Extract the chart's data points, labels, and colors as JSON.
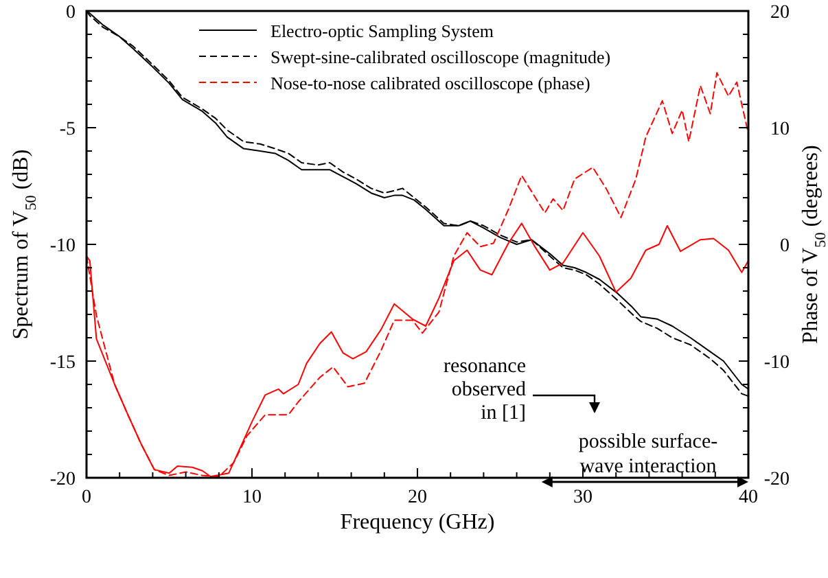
{
  "chart_data": {
    "type": "line",
    "xlabel": "Frequency (GHz)",
    "ylabel": "Spectrum of V$_{50}$ (dB)",
    "y2label": "Phase of V$_{50}$ (degrees)",
    "xlim": [
      0,
      40
    ],
    "ylim": [
      -20,
      0
    ],
    "y2lim": [
      -20,
      20
    ],
    "xticks": [
      0,
      {
        "value": 2,
        "label": null
      },
      {
        "value": 4,
        "label": null
      },
      {
        "value": 6,
        "label": null
      },
      {
        "value": 8,
        "label": null
      },
      10,
      {
        "value": 12,
        "label": null
      },
      {
        "value": 14,
        "label": null
      },
      {
        "value": 16,
        "label": null
      },
      {
        "value": 18,
        "label": null
      },
      20,
      {
        "value": 22,
        "label": null
      },
      {
        "value": 24,
        "label": null
      },
      {
        "value": 26,
        "label": null
      },
      {
        "value": 28,
        "label": null
      },
      30,
      {
        "value": 32,
        "label": null
      },
      {
        "value": 34,
        "label": null
      },
      {
        "value": 36,
        "label": null
      },
      {
        "value": 38,
        "label": null
      },
      40
    ],
    "yticks": [
      -20,
      {
        "value": -19,
        "label": null
      },
      {
        "value": -18,
        "label": null
      },
      {
        "value": -17,
        "label": null
      },
      {
        "value": -16,
        "label": null
      },
      -15,
      {
        "value": -14,
        "label": null
      },
      {
        "value": -13,
        "label": null
      },
      {
        "value": -12,
        "label": null
      },
      {
        "value": -11,
        "label": null
      },
      -10,
      {
        "value": -9,
        "label": null
      },
      {
        "value": -8,
        "label": null
      },
      {
        "value": -7,
        "label": null
      },
      {
        "value": -6,
        "label": null
      },
      -5,
      {
        "value": -4,
        "label": null
      },
      {
        "value": -3,
        "label": null
      },
      {
        "value": -2,
        "label": null
      },
      {
        "value": -1,
        "label": null
      },
      0
    ],
    "y2ticks": [
      -20,
      {
        "value": -18,
        "label": null
      },
      {
        "value": -16,
        "label": null
      },
      {
        "value": -14,
        "label": null
      },
      {
        "value": -12,
        "label": null
      },
      -10,
      {
        "value": -8,
        "label": null
      },
      {
        "value": -6,
        "label": null
      },
      {
        "value": -4,
        "label": null
      },
      {
        "value": -2,
        "label": null
      },
      0,
      {
        "value": 2,
        "label": null
      },
      {
        "value": 4,
        "label": null
      },
      {
        "value": 6,
        "label": null
      },
      {
        "value": 8,
        "label": null
      },
      10,
      {
        "value": 12,
        "label": null
      },
      {
        "value": 14,
        "label": null
      },
      {
        "value": 16,
        "label": null
      },
      {
        "value": 18,
        "label": null
      },
      20
    ],
    "grid": false,
    "legend": "top right",
    "series": [
      {
        "name": "Electro-optic Sampling System",
        "color": "#000000",
        "line_style": "solid",
        "x": [
          0,
          0.2,
          1,
          2,
          2.8,
          4,
          5,
          5.8,
          7,
          7.8,
          8.5,
          9.5,
          10.5,
          11.4,
          12.2,
          13,
          14,
          14.7,
          15.5,
          16.3,
          17.2,
          18,
          18.6,
          19.1,
          19.8,
          20.5,
          21.6,
          22.5,
          23.2,
          24,
          25,
          26,
          26.9,
          28,
          28.8,
          29.5,
          30.2,
          31,
          32.1,
          33,
          33.5,
          34.5,
          35.4,
          36.5,
          37.7,
          38.5,
          39.6,
          40
        ],
        "values": [
          0,
          -0.1,
          -0.6,
          -1.1,
          -1.6,
          -2.4,
          -3.1,
          -3.8,
          -4.3,
          -4.8,
          -5.4,
          -5.9,
          -6.0,
          -6.1,
          -6.4,
          -6.8,
          -6.8,
          -6.8,
          -7.1,
          -7.4,
          -7.8,
          -8.0,
          -7.9,
          -7.9,
          -8.1,
          -8.5,
          -9.2,
          -9.2,
          -9.0,
          -9.3,
          -9.7,
          -10.0,
          -9.8,
          -10.4,
          -10.9,
          -11.0,
          -11.2,
          -11.5,
          -12.1,
          -12.7,
          -13.1,
          -13.2,
          -13.5,
          -14.0,
          -14.6,
          -15.0,
          -16.0,
          -16.2
        ]
      },
      {
        "name": "Swept-sine-calibrated oscilloscope (magnitude)",
        "color": "#000000",
        "line_style": "dashed",
        "x": [
          0,
          0.2,
          1,
          2,
          2.8,
          4,
          5,
          5.8,
          7,
          7.8,
          8.5,
          9.5,
          10.5,
          11.4,
          12.2,
          13,
          14,
          14.7,
          15.5,
          16.3,
          17.2,
          18,
          18.6,
          19.1,
          19.8,
          20.5,
          21.6,
          22.5,
          23.2,
          24,
          25,
          26,
          26.9,
          28,
          28.8,
          29.5,
          30.2,
          31,
          32.1,
          33,
          33.5,
          34.5,
          35.4,
          36.5,
          37.7,
          38.5,
          39.6,
          40
        ],
        "values": [
          0,
          -0.2,
          -0.7,
          -1.1,
          -1.5,
          -2.3,
          -3.0,
          -3.7,
          -4.2,
          -4.6,
          -5.1,
          -5.6,
          -5.7,
          -5.9,
          -6.1,
          -6.5,
          -6.6,
          -6.5,
          -6.9,
          -7.2,
          -7.6,
          -7.8,
          -7.7,
          -7.6,
          -8.0,
          -8.4,
          -9.1,
          -9.2,
          -9.0,
          -9.2,
          -9.6,
          -9.9,
          -9.8,
          -10.5,
          -11.0,
          -11.1,
          -11.3,
          -11.7,
          -12.4,
          -13.0,
          -13.3,
          -13.6,
          -14.0,
          -14.3,
          -14.9,
          -15.4,
          -16.4,
          -16.5
        ]
      },
      {
        "name": "Nose-to-nose calibrated oscilloscope (phase)",
        "color": "#ff0000",
        "line_style": "dashed",
        "axis": "y2",
        "x": [
          0,
          0.6,
          1.7,
          2.5,
          3.3,
          4.1,
          5,
          6,
          7,
          8,
          8.9,
          9.7,
          10.8,
          12.2,
          12.8,
          14.1,
          14.9,
          15.8,
          16.8,
          17.8,
          18.6,
          19.7,
          20.3,
          21.3,
          22.2,
          23,
          23.8,
          24.6,
          25.5,
          26.3,
          27.7,
          28.2,
          28.8,
          29.5,
          30.6,
          31.4,
          32.3,
          33.2,
          33.8,
          34.8,
          35.4,
          36,
          36.4,
          37.1,
          37.7,
          38.1,
          38.8,
          39.3,
          40
        ],
        "values": [
          -1,
          -6.1,
          -12,
          -14.6,
          -17.1,
          -19.3,
          -19.8,
          -19.5,
          -19.8,
          -19.9,
          -18.7,
          -16.4,
          -14.6,
          -14.6,
          -13.5,
          -11.4,
          -10.5,
          -12.2,
          -11.9,
          -9.1,
          -6.5,
          -6.5,
          -7.6,
          -5.8,
          -1,
          1,
          -0.2,
          0.1,
          3,
          5.9,
          2.7,
          3.9,
          2.9,
          5.6,
          6.6,
          4.8,
          2.3,
          5.6,
          9.2,
          12.3,
          9.5,
          11.5,
          8.8,
          13.6,
          11.2,
          14.7,
          12.7,
          13.9,
          9.5
        ]
      },
      {
        "color": "#ff0000",
        "line_style": "solid",
        "axis": "y2",
        "x": [
          0,
          0.2,
          0.6,
          1.7,
          2.5,
          3.3,
          4.1,
          5,
          5.5,
          6.4,
          7,
          7.5,
          8.6,
          10,
          10.8,
          11.6,
          11.9,
          12.8,
          13.3,
          14.1,
          14.8,
          15.5,
          16.1,
          16.9,
          17.8,
          18.6,
          19.7,
          20.5,
          21.3,
          22.2,
          23,
          23.8,
          24.5,
          25.5,
          26.3,
          27.1,
          28,
          28.8,
          30,
          31,
          32,
          32.9,
          33.8,
          34.6,
          35.1,
          35.9,
          37.1,
          37.9,
          38.8,
          39.6,
          40
        ],
        "values": [
          -1,
          -1.4,
          -8.1,
          -12,
          -14.6,
          -17.1,
          -19.3,
          -19.6,
          -19.0,
          -19.1,
          -19.4,
          -19.9,
          -19.6,
          -15.2,
          -12.9,
          -12.4,
          -12.8,
          -12,
          -10.2,
          -8.5,
          -7.5,
          -9.3,
          -9.8,
          -9.2,
          -7.3,
          -5.1,
          -6.4,
          -7,
          -4.6,
          -1.4,
          -0.5,
          -2.2,
          -2.6,
          0.1,
          1.8,
          -0.2,
          -2.2,
          -1.6,
          1,
          -1,
          -4.1,
          -2.9,
          -0.5,
          0,
          1.6,
          -0.6,
          0.4,
          0.5,
          -0.5,
          -2.4,
          -1.4
        ]
      }
    ],
    "annotations": [
      "resonance\nobserved\nin [1]",
      "possible surface-\nwave interaction"
    ]
  }
}
